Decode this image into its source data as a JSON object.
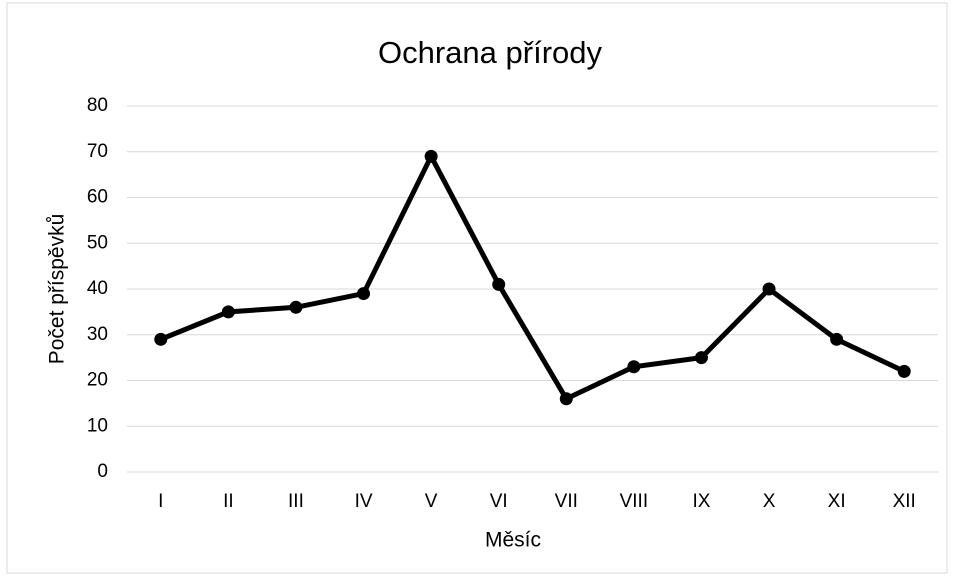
{
  "chart_data": {
    "type": "line",
    "title": "Ochrana přírody",
    "x_label": "Měsíc",
    "y_label": "Počet příspěvků",
    "categories": [
      "I",
      "II",
      "III",
      "IV",
      "V",
      "VI",
      "VII",
      "VIII",
      "IX",
      "X",
      "XI",
      "XII"
    ],
    "series": [
      {
        "name": "Počet příspěvků",
        "color": "#000000",
        "values": [
          29,
          35,
          36,
          39,
          69,
          41,
          16,
          23,
          25,
          40,
          29,
          22
        ]
      }
    ],
    "ylim": [
      0,
      80
    ],
    "yticks": [
      0,
      10,
      20,
      30,
      40,
      50,
      60,
      70,
      80
    ],
    "grid": true
  }
}
